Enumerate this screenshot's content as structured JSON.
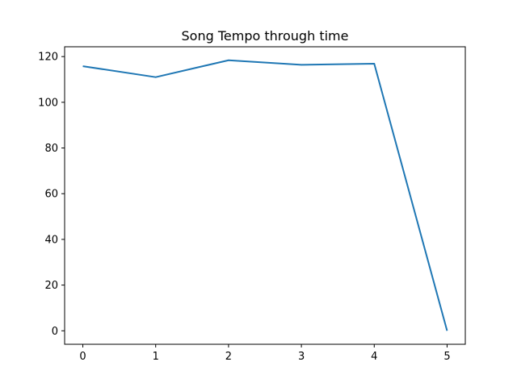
{
  "chart_data": {
    "type": "line",
    "title": "Song Tempo through time",
    "xlabel": "",
    "ylabel": "",
    "x": [
      0,
      1,
      2,
      3,
      4,
      5
    ],
    "series": [
      {
        "values": [
          115.8,
          111.0,
          118.4,
          116.4,
          116.9,
          0
        ],
        "color": "#1f77b4"
      }
    ],
    "xlim": [
      -0.25,
      5.25
    ],
    "ylim": [
      -5.9,
      124.3
    ],
    "xticks": [
      "0",
      "1",
      "2",
      "3",
      "4",
      "5"
    ],
    "yticks": [
      "0",
      "20",
      "40",
      "60",
      "80",
      "100",
      "120"
    ],
    "grid": false,
    "legend": "none"
  }
}
